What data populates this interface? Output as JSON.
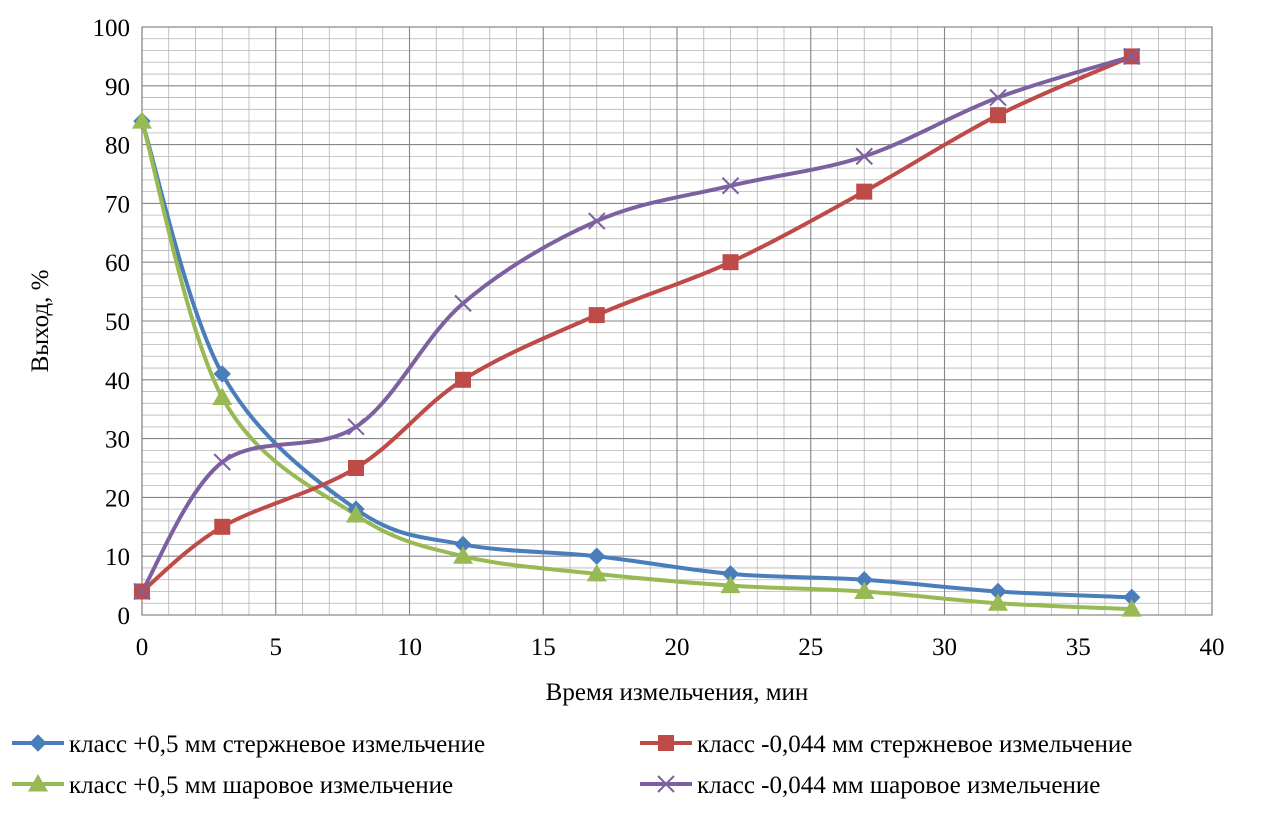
{
  "chart_data": {
    "type": "line",
    "title": "",
    "xlabel": "Время измельчения, мин",
    "ylabel": "Выход, %",
    "xlim": [
      0,
      40
    ],
    "ylim": [
      0,
      100
    ],
    "x_ticks": [
      0,
      5,
      10,
      15,
      20,
      25,
      30,
      35,
      40
    ],
    "y_ticks": [
      0,
      10,
      20,
      30,
      40,
      50,
      60,
      70,
      80,
      90,
      100
    ],
    "grid": true,
    "legend_position": "bottom",
    "x": [
      0,
      3,
      8,
      12,
      17,
      22,
      27,
      32,
      37
    ],
    "series": [
      {
        "name": "класс +0,5 мм стержневое измельчение",
        "color": "#4a7ebb",
        "marker": "diamond",
        "values": [
          84,
          41,
          18,
          12,
          10,
          7,
          6,
          4,
          3
        ]
      },
      {
        "name": "класс -0,044 мм стержневое измельчение",
        "color": "#be4b48",
        "marker": "square",
        "values": [
          4,
          15,
          25,
          40,
          51,
          60,
          72,
          85,
          95
        ]
      },
      {
        "name": "класс +0,5 мм шаровое измельчение",
        "color": "#98b954",
        "marker": "triangle",
        "values": [
          84,
          37,
          17,
          10,
          7,
          5,
          4,
          2,
          1
        ]
      },
      {
        "name": "класс -0,044 мм шаровое измельчение",
        "color": "#7d60a0",
        "marker": "x",
        "values": [
          4,
          26,
          32,
          53,
          67,
          73,
          78,
          88,
          95
        ]
      }
    ]
  }
}
